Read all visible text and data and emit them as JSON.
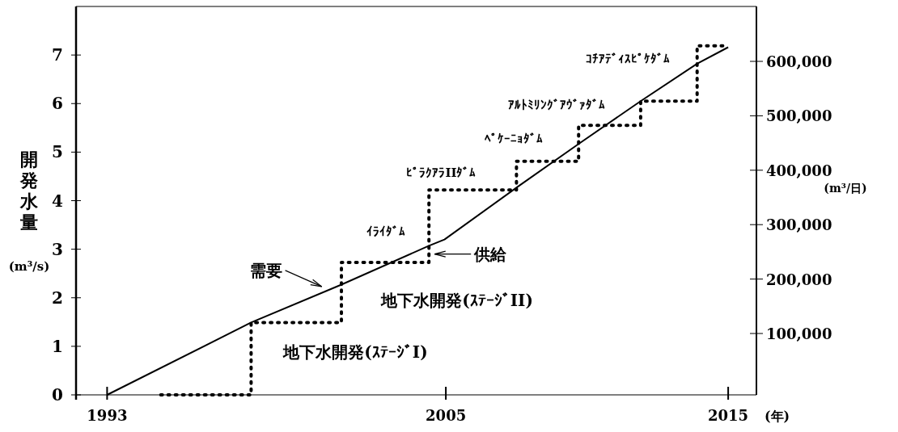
{
  "chart_data": {
    "type": "line",
    "xlabel": "(年)",
    "ylabel": "開発水量(m³/s)",
    "y2label": "(m³/日)",
    "xlim": [
      1991.9,
      2016
    ],
    "xticks": [
      1993,
      2005,
      2015
    ],
    "ylim": [
      0,
      8
    ],
    "yticks": [
      0,
      1,
      2,
      3,
      4,
      5,
      6,
      7
    ],
    "y2lim": [
      -12800,
      700900
    ],
    "y2ticks": [
      {
        "value": 100000,
        "label": "100,000"
      },
      {
        "value": 200000,
        "label": "200,000"
      },
      {
        "value": 300000,
        "label": "300,000"
      },
      {
        "value": 400000,
        "label": "400,000"
      },
      {
        "value": 500000,
        "label": "500,000"
      },
      {
        "value": 600000,
        "label": "600,000"
      }
    ],
    "grid": false,
    "marker": "none",
    "series": [
      {
        "type": "line",
        "color": "#000000",
        "line_style": "solid",
        "x": [
          1993,
          1998.1,
          2001.3,
          2004.4,
          2004.95,
          2007.6,
          2009.7,
          2011.9,
          2013.9,
          2015
        ],
        "values": [
          0,
          1.49,
          2.27,
          3.07,
          3.2,
          4.31,
          5.17,
          6.05,
          6.82,
          7.16
        ]
      },
      {
        "type": "step",
        "color": "#000000",
        "line_style": "dotted",
        "x": [
          1994.9,
          1998.1,
          2001.3,
          2004.4,
          2007.5,
          2009.7,
          2011.9,
          2013.9,
          2015
        ],
        "values": [
          0,
          1.49,
          2.73,
          4.22,
          4.81,
          5.55,
          6.05,
          7.19,
          7.19
        ]
      }
    ],
    "annotations": [
      "需要",
      {
        "text": "供給",
        "x": 2004.6,
        "y": 2.9
      },
      {
        "text": "ｲﾗｲﾀﾞﾑ",
        "x": 2004.4,
        "y": 3.4
      },
      "ﾋﾟﾗｸｱﾗIIﾀﾞﾑ",
      {
        "text": "ﾍﾟｹｰﾆｮﾀﾞﾑ",
        "x": 2009.7,
        "y": 5.3
      },
      {
        "text": "ｱﾙﾄﾐﾘﾝｸﾞｱｳﾞｧﾀﾞﾑ",
        "x": 2011.9,
        "y": 6.0
      },
      {
        "text": "ｺﾁｱﾃﾞｨｽﾋﾟｹﾀﾞﾑ",
        "x": 2013.9,
        "y": 6.95
      },
      "地下水開発(ｽﾃｰｼﾞI)",
      "地下水開発(ｽﾃｰｼﾞII)"
    ]
  }
}
